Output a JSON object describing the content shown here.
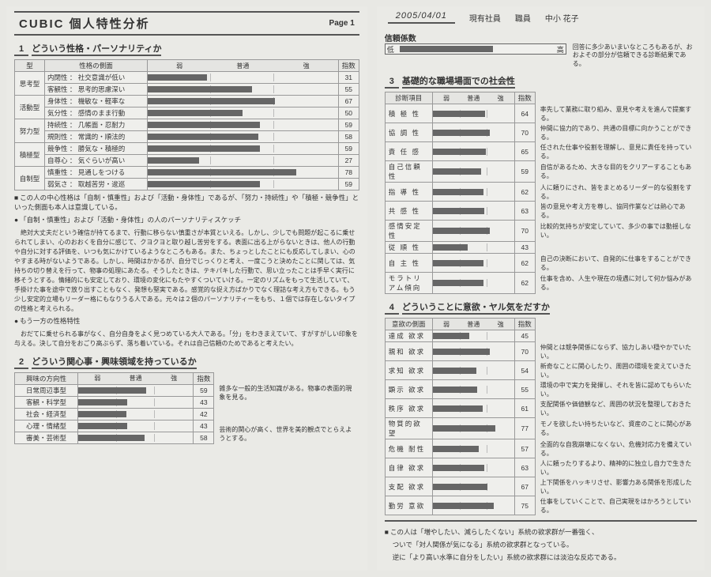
{
  "meta": {
    "title": "CUBIC 個人特性分析",
    "page": "Page 1",
    "date": "2005/04/01",
    "fields": [
      "現有社員",
      "職員",
      "中小  花子"
    ]
  },
  "colors": {
    "bar": "#666666",
    "border": "#999999",
    "bg": "#eaeae6"
  },
  "reliability": {
    "label": "信頼係数",
    "lo": "低",
    "hi": "高",
    "fill_pct": 62,
    "text": "回答に多少あいまいなところもあるが、おおよその部分が信頼できる診断結果である。"
  },
  "sec1": {
    "title": "どういう性格・パーソナリティか",
    "headers": [
      "型",
      "性格の側面",
      "弱",
      "普通",
      "強",
      "指数"
    ],
    "groups": [
      {
        "type": "思考型",
        "rows": [
          {
            "label": "内閉性 ： 社交意識が低い",
            "score": 31
          },
          {
            "label": "客観性 ： 思考的思慮深い",
            "score": 55
          }
        ]
      },
      {
        "type": "活動型",
        "rows": [
          {
            "label": "身体性 ： 機敏な・軽率な",
            "score": 67
          },
          {
            "label": "気分性 ： 感情のまま行動",
            "score": 50
          }
        ]
      },
      {
        "type": "努力型",
        "rows": [
          {
            "label": "持続性 ： 几帳面・忍耐力",
            "score": 59
          },
          {
            "label": "規則性 ： 常識的・順法的",
            "score": 58
          }
        ]
      },
      {
        "type": "積極型",
        "rows": [
          {
            "label": "競争性 ： 勝気な・積極的",
            "score": 59
          },
          {
            "label": "自尊心 ： 気ぐらいが高い",
            "score": 27
          }
        ]
      },
      {
        "type": "自制型",
        "rows": [
          {
            "label": "慎重性 ： 見通しをつける",
            "score": 78
          },
          {
            "label": "弱気さ ： 取越苦労・逡巡",
            "score": 59
          }
        ]
      }
    ],
    "note_sq1": "この人の中心性格は「自制・慎重性」および「活動・身体性」であるが、「努力・持続性」や「積極・競争性」といった側面も本人は意識している。",
    "note_ci1": "「自制・慎重性」および「活動・身体性」の人のパーソナリティスケッチ",
    "para1": "絶対大丈夫だという確信が持てるまで、行動に移らない慎重さが本質といえる。しかし、少しでも問題が起こるに乗せられてしまい、心のおおくを自分に感じて、クヨクヨと取り越し苦労をする。表面に出る上がらないときは、他人の行動や自分に対する評価を、いつも気にかけているようなところもある。また、ちょっとしたことにも反応してしまい、心のやすまる時がないようである。しかし、時間はかかるが、自分でじっくりと考え、一度こうと決めたことに関しては、気持ちの切り替えを行って、物事の処理にあたる。そうしたときは、テキパキした行動で、思い立ったことは手早く実行に移そうとする。情緒的にも安定しており、環境の変化にもたやすくついていける。一定のリズムをもって生活していて、手掛けた事を途中で放り出すこともなく、発想も堅実である。感覚的な捉え方ばかりでなく理詰な考え方もできる。もう少し安定的立場もリーダー格にもなりうる人である。元々は２個のパーソナリティーをもち、１個では存在しないタイプの性格と考えられる。",
    "note_ci2": "もう一方の性格特性",
    "para2": "おだてに乗せられる事がなく、自分自身をよく見つめている大人である。「分」をわきまえていて、すがすがしい印象を与える。決して自分をおごり高ぶらず、落ち着いている。それは自己信頼のためであると考えたい。"
  },
  "sec2": {
    "title": "どういう関心事・興味領域を持っているか",
    "headers": [
      "興味の方向性",
      "弱",
      "普通",
      "強",
      "指数"
    ],
    "rows": [
      {
        "label": "日常周辺事型",
        "score": 59,
        "desc": "雑多な一般的生活知識がある。物事の表面的現象を見る。"
      },
      {
        "label": "客観・科学型",
        "score": 43,
        "desc": ""
      },
      {
        "label": "社会・経済型",
        "score": 42,
        "desc": ""
      },
      {
        "label": "心理・情緒型",
        "score": 43,
        "desc": ""
      },
      {
        "label": "審美・芸術型",
        "score": 58,
        "desc": "芸術的関心が高く、世界を美的観点でとらえようとする。"
      }
    ]
  },
  "sec3": {
    "title": "基礎的な職場場面での社会性",
    "headers": [
      "診断項目",
      "弱",
      "普通",
      "強",
      "指数"
    ],
    "rows": [
      {
        "label": "積 極 性",
        "score": 64,
        "desc": "率先して業務に取り組み、意見や考えを進んで提案する。"
      },
      {
        "label": "協 調 性",
        "score": 70,
        "desc": "仲間に協力的であり、共通の目標に向かうことができる。"
      },
      {
        "label": "責 任 感",
        "score": 65,
        "desc": "任された仕事や役割を理解し、意見に責任を持っている。"
      },
      {
        "label": "自己信頼性",
        "score": 59,
        "desc": "自信があるため、大きな目的をクリアーすることもある。"
      },
      {
        "label": "指 導 性",
        "score": 62,
        "desc": "人に頼りにされ、皆をまとめるリーダー的な役割をする。"
      },
      {
        "label": "共 感 性",
        "score": 63,
        "desc": "皆の意見や考え方を尊し、協同作業などは熱心である。"
      },
      {
        "label": "感情安定性",
        "score": 70,
        "desc": "比較的気持ちが安定していて、多少の事では動揺しない。"
      },
      {
        "label": "従 順 性",
        "score": 43,
        "desc": ""
      },
      {
        "label": "自 主 性",
        "score": 62,
        "desc": "自己の決断において、自発的に仕事をすることができる。"
      },
      {
        "label": "モラトリアム傾向",
        "score": 62,
        "desc": "仕事を含め、人生や現在の境遇に対して何か悩みがある。"
      }
    ]
  },
  "sec4": {
    "title": "どういうことに意欲・ヤル気をだすか",
    "headers": [
      "意欲の側面",
      "弱",
      "普通",
      "強",
      "指数"
    ],
    "rows": [
      {
        "label": "達成 欲求",
        "score": 45,
        "desc": ""
      },
      {
        "label": "親和 欲求",
        "score": 70,
        "desc": "仲間とは競争関係にならず、協力しあい穏やかでいたい。"
      },
      {
        "label": "求知 欲求",
        "score": 54,
        "desc": "新奇なことに関心したり、周囲の環境を変えていきたい。"
      },
      {
        "label": "顕示 欲求",
        "score": 55,
        "desc": "環境の中で実力を発揮し、それを皆に認めてもらいたい。"
      },
      {
        "label": "秩序 欲求",
        "score": 61,
        "desc": "支配関係や価値観など、周囲の状況を整理しておきたい。"
      },
      {
        "label": "物質的欲望",
        "score": 77,
        "desc": "モノを欲したい持ちたいなど、資産のことに関心がある。"
      },
      {
        "label": "危機 耐性",
        "score": 57,
        "desc": "全面的な自我崩壊になくない、危機対応力を備えている。"
      },
      {
        "label": "自律 欲求",
        "score": 63,
        "desc": "人に頼ったりするより、精神的に独立し自力で生きたい。"
      },
      {
        "label": "支配 欲求",
        "score": 67,
        "desc": "上下関係をハッキリさせ、影響力ある関係を形成したい。"
      },
      {
        "label": "勤労 意欲",
        "score": 75,
        "desc": "仕事をしていくことで、自己実現をはかろうとしている。"
      }
    ],
    "footer": [
      "この人は「増やしたい、減らしたくない」系統の欲求群が一番強く、",
      "ついで「対人関係が気になる」系統の欲求群となっている。",
      "逆に「より高い水準に自分をしたい」系統の欲求群には淡泊な反応である。"
    ]
  }
}
